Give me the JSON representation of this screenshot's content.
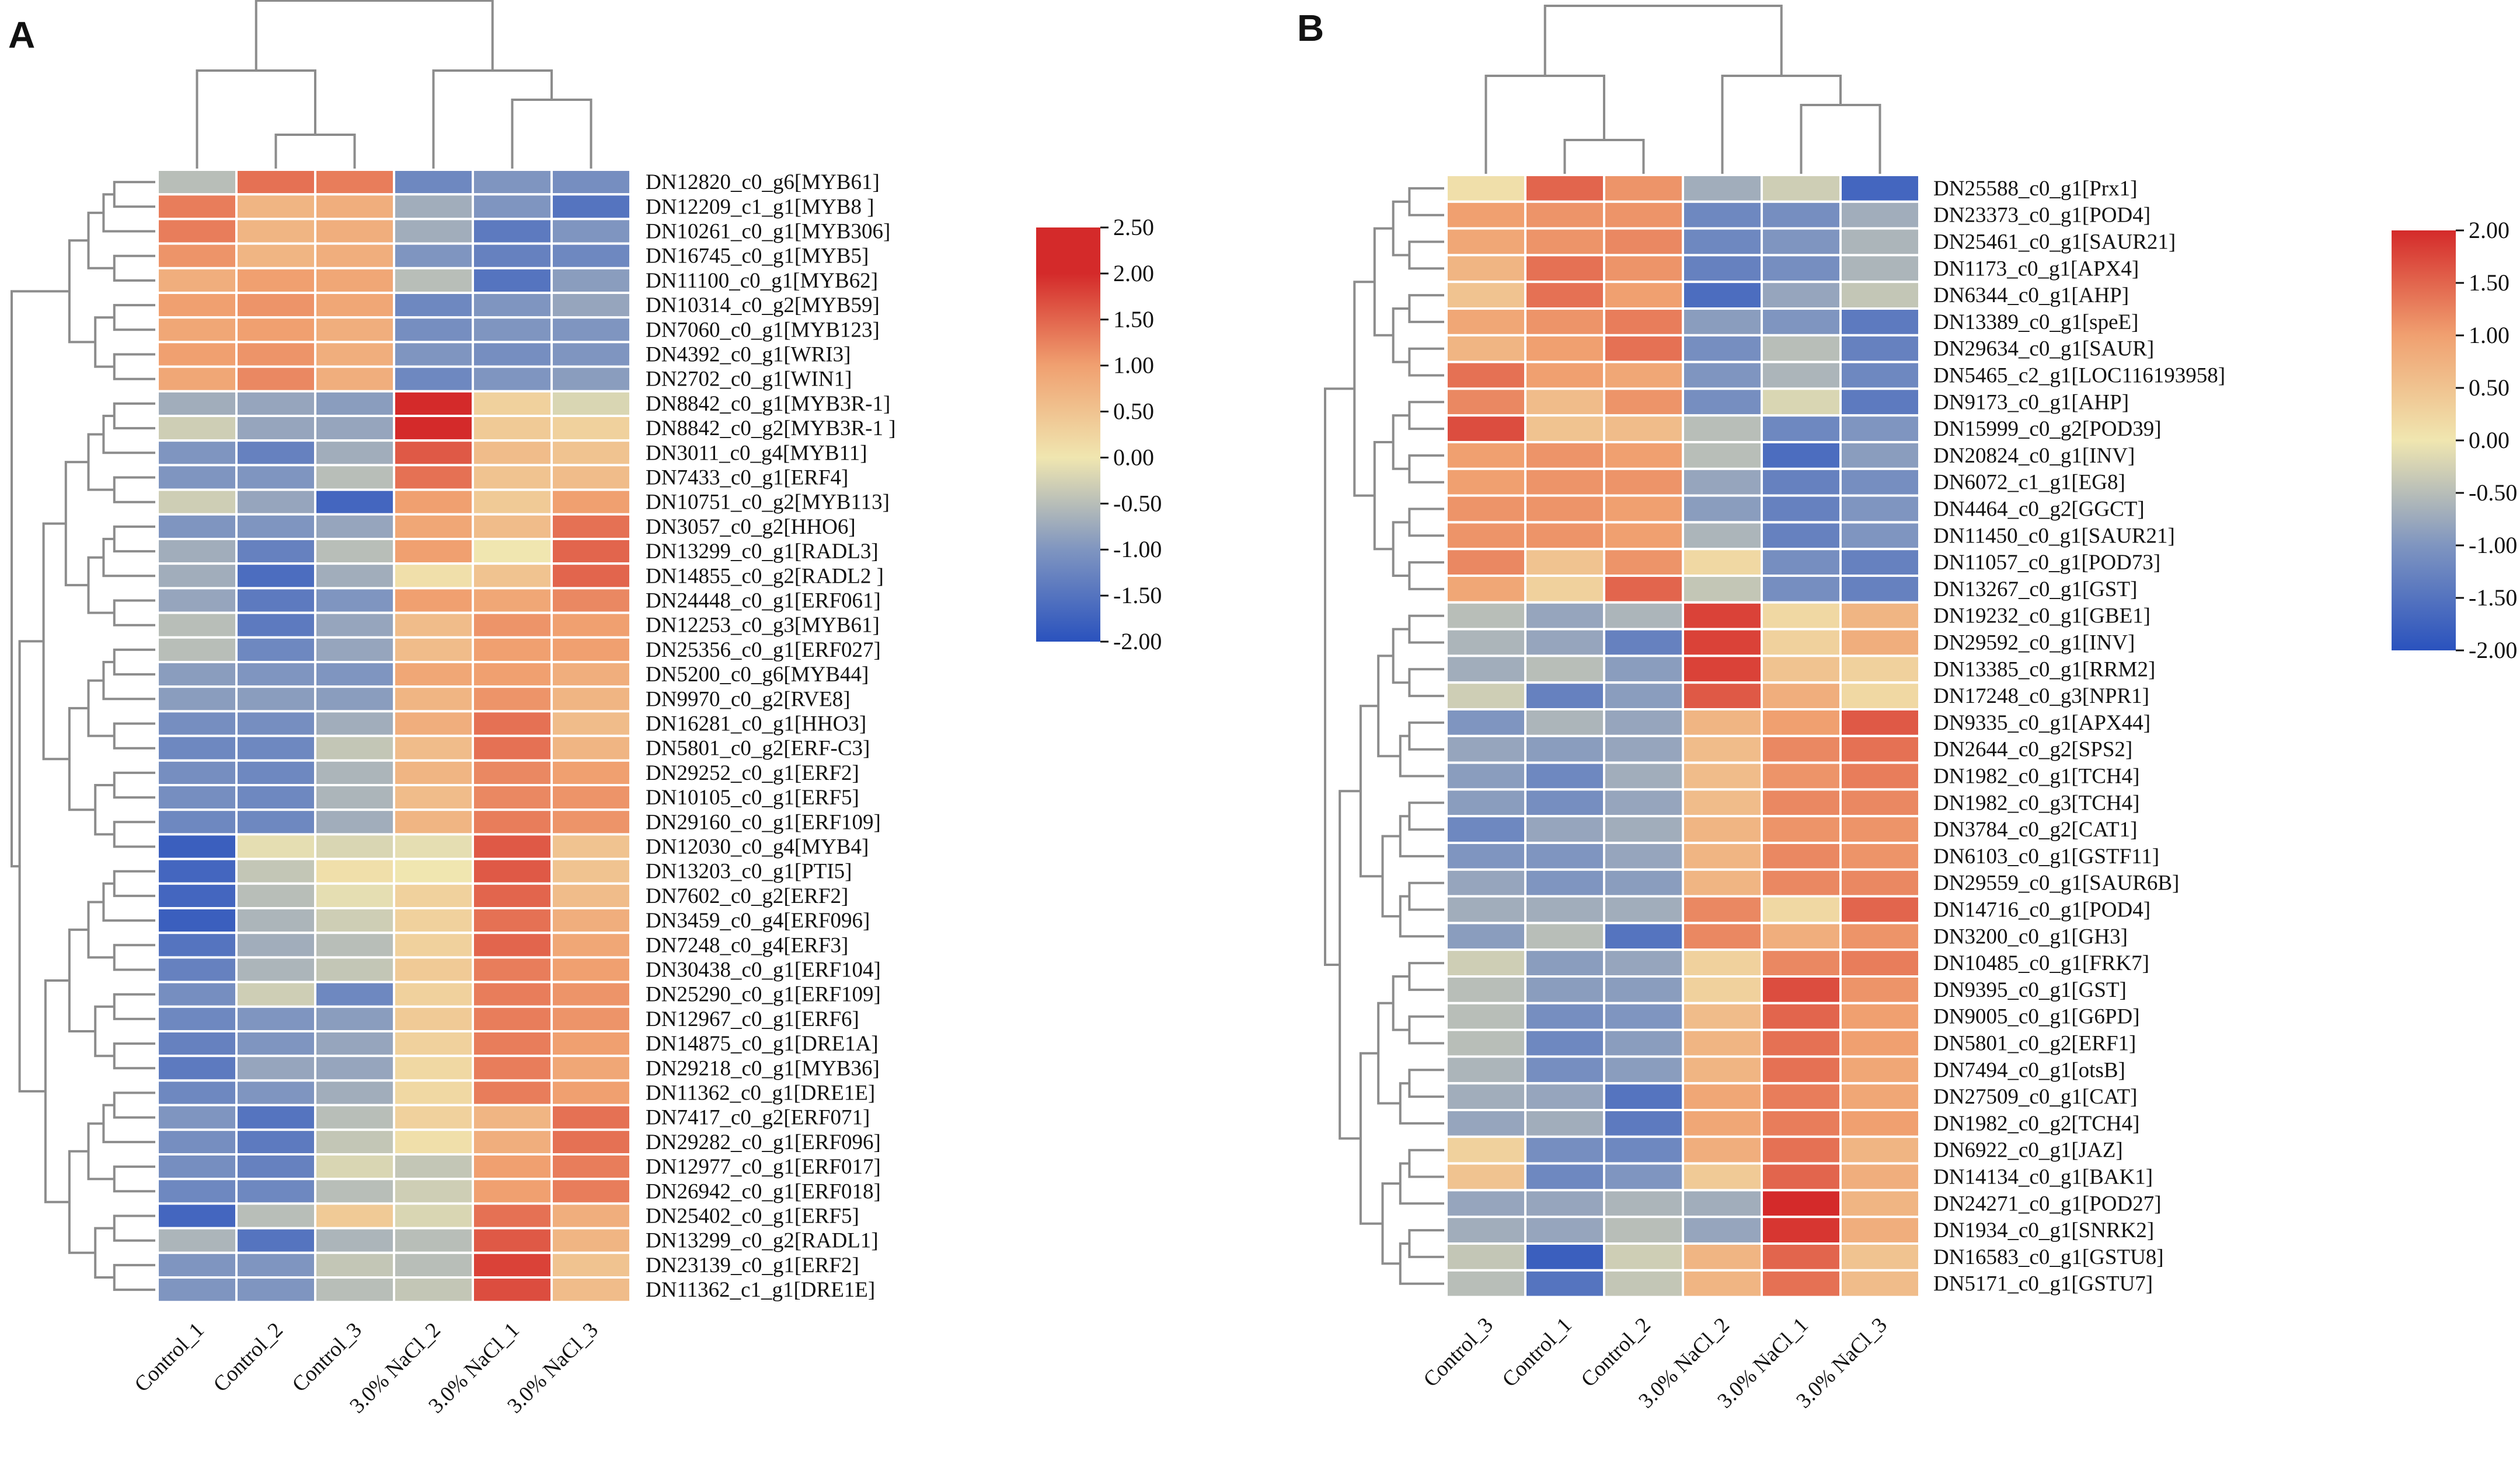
{
  "figure": {
    "colors": {
      "low": "#2a52be",
      "lowmid": "#7f95c0",
      "mid": "#f0e6b0",
      "highmid": "#f0a070",
      "high": "#d42a2a",
      "grid": "#ffffff",
      "dendrogram": "#8c8c8c",
      "text": "#111111"
    }
  },
  "chart_data": [
    {
      "type": "heatmap",
      "panel": "A",
      "columns": [
        "Control_1",
        "Control_2",
        "Control_3",
        "3.0% NaCl_2",
        "3.0% NaCl_1",
        "3.0% NaCl_3"
      ],
      "rows": [
        "DN12820_c0_g6[MYB61]",
        "DN12209_c1_g1[MYB8 ]",
        "DN10261_c0_g1[MYB306]",
        "DN16745_c0_g1[MYB5]",
        "DN11100_c0_g1[MYB62]",
        "DN10314_c0_g2[MYB59]",
        "DN7060_c0_g1[MYB123]",
        "DN4392_c0_g1[WRI3]",
        "DN2702_c0_g1[WIN1]",
        "DN8842_c0_g1[MYB3R-1]",
        "DN8842_c0_g2[MYB3R-1 ]",
        "DN3011_c0_g4[MYB11]",
        "DN7433_c0_g1[ERF4]",
        "DN10751_c0_g2[MYB113]",
        "DN3057_c0_g2[HHO6]",
        "DN13299_c0_g1[RADL3]",
        "DN14855_c0_g2[RADL2 ]",
        "DN24448_c0_g1[ERF061]",
        "DN12253_c0_g3[MYB61]",
        "DN25356_c0_g1[ERF027]",
        "DN5200_c0_g6[MYB44]",
        "DN9970_c0_g2[RVE8]",
        "DN16281_c0_g1[HHO3]",
        "DN5801_c0_g2[ERF-C3]",
        "DN29252_c0_g1[ERF2]",
        "DN10105_c0_g1[ERF5]",
        "DN29160_c0_g1[ERF109]",
        "DN12030_c0_g4[MYB4]",
        "DN13203_c0_g1[PTI5]",
        "DN7602_c0_g2[ERF2]",
        "DN3459_c0_g4[ERF096]",
        "DN7248_c0_g4[ERF3]",
        "DN30438_c0_g1[ERF104]",
        "DN25290_c0_g1[ERF109]",
        "DN12967_c0_g1[ERF6]",
        "DN14875_c0_g1[DRE1A]",
        "DN29218_c0_g1[MYB36]",
        "DN11362_c0_g1[DRE1E]",
        "DN7417_c0_g2[ERF071]",
        "DN29282_c0_g1[ERF096]",
        "DN12977_c0_g1[ERF017]",
        "DN26942_c0_g1[ERF018]",
        "DN25402_c0_g1[ERF5]",
        "DN13299_c0_g2[RADL1]",
        "DN23139_c0_g1[ERF2]",
        "DN11362_c1_g1[DRE1E]"
      ],
      "values": [
        [
          -0.5,
          1.4,
          1.3,
          -1.2,
          -1.0,
          -1.1
        ],
        [
          1.3,
          0.7,
          0.8,
          -0.7,
          -1.0,
          -1.5
        ],
        [
          1.3,
          0.7,
          0.8,
          -0.7,
          -1.4,
          -1.0
        ],
        [
          1.1,
          0.7,
          0.8,
          -1.0,
          -1.3,
          -1.2
        ],
        [
          0.8,
          1.0,
          0.9,
          -0.5,
          -1.5,
          -0.9
        ],
        [
          1.0,
          1.1,
          0.9,
          -1.2,
          -1.0,
          -0.8
        ],
        [
          0.9,
          1.0,
          0.8,
          -1.1,
          -1.0,
          -1.0
        ],
        [
          1.0,
          1.1,
          0.8,
          -1.0,
          -1.1,
          -1.0
        ],
        [
          0.9,
          1.2,
          0.8,
          -1.2,
          -1.0,
          -0.9
        ],
        [
          -0.7,
          -0.8,
          -0.9,
          2.0,
          0.3,
          -0.2
        ],
        [
          -0.3,
          -0.8,
          -0.8,
          2.0,
          0.4,
          0.3
        ],
        [
          -1.0,
          -1.3,
          -0.7,
          1.6,
          0.6,
          0.5
        ],
        [
          -1.0,
          -1.0,
          -0.5,
          1.4,
          0.5,
          0.6
        ],
        [
          -0.3,
          -0.8,
          -1.7,
          1.0,
          0.4,
          1.0
        ],
        [
          -1.0,
          -1.0,
          -0.8,
          0.9,
          0.6,
          1.4
        ],
        [
          -0.7,
          -1.3,
          -0.5,
          1.0,
          0.0,
          1.5
        ],
        [
          -0.7,
          -1.6,
          -0.7,
          0.1,
          0.5,
          1.5
        ],
        [
          -0.8,
          -1.4,
          -1.0,
          1.0,
          0.9,
          1.2
        ],
        [
          -0.5,
          -1.4,
          -0.8,
          0.6,
          1.1,
          1.0
        ],
        [
          -0.5,
          -1.2,
          -0.8,
          0.6,
          1.0,
          1.0
        ],
        [
          -0.9,
          -1.0,
          -1.0,
          0.9,
          1.0,
          0.8
        ],
        [
          -0.9,
          -0.9,
          -0.9,
          0.7,
          1.1,
          0.7
        ],
        [
          -1.1,
          -1.1,
          -0.7,
          0.8,
          1.4,
          0.6
        ],
        [
          -1.2,
          -1.2,
          -0.4,
          0.6,
          1.4,
          0.7
        ],
        [
          -1.1,
          -1.2,
          -0.6,
          0.7,
          1.2,
          1.0
        ],
        [
          -1.1,
          -1.2,
          -0.6,
          0.6,
          1.2,
          1.1
        ],
        [
          -1.2,
          -1.2,
          -0.7,
          0.7,
          1.3,
          1.1
        ],
        [
          -1.8,
          -0.1,
          -0.2,
          -0.1,
          1.6,
          0.5
        ],
        [
          -1.7,
          -0.4,
          0.1,
          0.0,
          1.6,
          0.5
        ],
        [
          -1.7,
          -0.5,
          -0.1,
          0.3,
          1.5,
          0.6
        ],
        [
          -1.8,
          -0.6,
          -0.3,
          0.3,
          1.4,
          0.8
        ],
        [
          -1.5,
          -0.7,
          -0.5,
          0.3,
          1.5,
          0.9
        ],
        [
          -1.3,
          -0.6,
          -0.4,
          0.4,
          1.3,
          1.0
        ],
        [
          -1.1,
          -0.3,
          -1.2,
          0.3,
          1.3,
          1.1
        ],
        [
          -1.2,
          -1.0,
          -0.9,
          0.4,
          1.3,
          1.1
        ],
        [
          -1.3,
          -1.0,
          -0.8,
          0.3,
          1.3,
          1.0
        ],
        [
          -1.4,
          -0.8,
          -0.8,
          0.2,
          1.3,
          0.9
        ],
        [
          -1.2,
          -1.0,
          -0.7,
          0.2,
          1.3,
          1.0
        ],
        [
          -1.0,
          -1.5,
          -0.5,
          0.3,
          0.7,
          1.4
        ],
        [
          -1.1,
          -1.4,
          -0.4,
          0.1,
          0.8,
          1.4
        ],
        [
          -1.1,
          -1.3,
          -0.2,
          -0.4,
          1.0,
          1.3
        ],
        [
          -1.2,
          -1.2,
          -0.5,
          -0.3,
          1.0,
          1.3
        ],
        [
          -1.7,
          -0.5,
          0.4,
          -0.2,
          1.4,
          0.8
        ],
        [
          -0.6,
          -1.5,
          -0.6,
          -0.5,
          1.6,
          0.7
        ],
        [
          -1.0,
          -1.0,
          -0.4,
          -0.5,
          1.8,
          0.5
        ],
        [
          -1.0,
          -1.0,
          -0.5,
          -0.4,
          1.7,
          0.6
        ]
      ],
      "colorbar": {
        "ticks": [
          "2.50",
          "2.00",
          "1.50",
          "1.00",
          "0.50",
          "0.00",
          "-0.50",
          "-1.00",
          "-1.50",
          "-2.00"
        ],
        "range": [
          -2.0,
          2.5
        ]
      }
    },
    {
      "type": "heatmap",
      "panel": "B",
      "columns": [
        "Control_3",
        "Control_1",
        "Control_2",
        "3.0% NaCl_2",
        "3.0% NaCl_1",
        "3.0% NaCl_3"
      ],
      "rows": [
        "DN25588_c0_g1[Prx1]",
        "DN23373_c0_g1[POD4]",
        "DN25461_c0_g1[SAUR21]",
        "DN1173_c0_g1[APX4]",
        "DN6344_c0_g1[AHP]",
        "DN13389_c0_g1[speE]",
        "DN29634_c0_g1[SAUR]",
        "DN5465_c2_g1[LOC116193958]",
        "DN9173_c0_g1[AHP]",
        "DN15999_c0_g2[POD39]",
        "DN20824_c0_g1[INV]",
        "DN6072_c1_g1[EG8]",
        "DN4464_c0_g2[GGCT]",
        "DN11450_c0_g1[SAUR21]",
        "DN11057_c0_g1[POD73]",
        "DN13267_c0_g1[GST]",
        "DN19232_c0_g1[GBE1]",
        "DN29592_c0_g1[INV]",
        "DN13385_c0_g1[RRM2]",
        "DN17248_c0_g3[NPR1]",
        "DN9335_c0_g1[APX44]",
        "DN2644_c0_g2[SPS2]",
        "DN1982_c0_g1[TCH4]",
        "DN1982_c0_g3[TCH4]",
        "DN3784_c0_g2[CAT1]",
        "DN6103_c0_g1[GSTF11]",
        "DN29559_c0_g1[SAUR6B]",
        "DN14716_c0_g1[POD4]",
        "DN3200_c0_g1[GH3]",
        "DN10485_c0_g1[FRK7]",
        "DN9395_c0_g1[GST]",
        "DN9005_c0_g1[G6PD]",
        "DN5801_c0_g2[ERF1]",
        "DN7494_c0_g1[otsB]",
        "DN27509_c0_g1[CAT]",
        "DN1982_c0_g2[TCH4]",
        "DN6922_c0_g1[JAZ]",
        "DN14134_c0_g1[BAK1]",
        "DN24271_c0_g1[POD27]",
        "DN1934_c0_g1[SNRK2]",
        "DN16583_c0_g1[GSTU8]",
        "DN5171_c0_g1[GSTU7]"
      ],
      "values": [
        [
          0.1,
          1.5,
          1.1,
          -0.7,
          -0.3,
          -1.7
        ],
        [
          1.0,
          1.1,
          1.1,
          -1.2,
          -1.1,
          -0.7
        ],
        [
          0.9,
          1.1,
          1.2,
          -1.2,
          -1.0,
          -0.6
        ],
        [
          0.7,
          1.4,
          1.1,
          -1.3,
          -1.1,
          -0.6
        ],
        [
          0.5,
          1.4,
          1.0,
          -1.6,
          -0.8,
          -0.4
        ],
        [
          0.9,
          1.1,
          1.3,
          -0.9,
          -1.0,
          -1.4
        ],
        [
          0.7,
          1.0,
          1.4,
          -1.1,
          -0.5,
          -1.3
        ],
        [
          1.4,
          1.0,
          0.9,
          -1.0,
          -0.6,
          -1.2
        ],
        [
          1.2,
          0.6,
          1.1,
          -1.1,
          -0.2,
          -1.4
        ],
        [
          1.7,
          0.5,
          0.6,
          -0.5,
          -1.2,
          -1.0
        ],
        [
          1.0,
          1.1,
          1.0,
          -0.5,
          -1.6,
          -0.9
        ],
        [
          1.0,
          1.1,
          1.1,
          -0.8,
          -1.3,
          -1.1
        ],
        [
          1.1,
          1.1,
          1.0,
          -0.9,
          -1.3,
          -1.0
        ],
        [
          1.1,
          1.1,
          1.0,
          -0.6,
          -1.3,
          -1.0
        ],
        [
          1.2,
          0.5,
          1.1,
          0.2,
          -1.1,
          -1.3
        ],
        [
          0.9,
          0.3,
          1.5,
          -0.4,
          -1.1,
          -1.3
        ],
        [
          -0.5,
          -0.8,
          -0.6,
          1.8,
          0.2,
          0.7
        ],
        [
          -0.6,
          -0.8,
          -1.3,
          1.8,
          0.3,
          0.8
        ],
        [
          -0.7,
          -0.5,
          -0.9,
          1.8,
          0.5,
          0.3
        ],
        [
          -0.3,
          -1.3,
          -0.9,
          1.6,
          0.8,
          0.2
        ],
        [
          -1.0,
          -0.6,
          -0.8,
          0.7,
          1.0,
          1.6
        ],
        [
          -0.8,
          -0.9,
          -0.8,
          0.6,
          1.2,
          1.4
        ],
        [
          -0.9,
          -1.2,
          -0.7,
          0.6,
          1.1,
          1.3
        ],
        [
          -0.9,
          -1.1,
          -0.8,
          0.6,
          1.2,
          1.2
        ],
        [
          -1.2,
          -0.8,
          -0.7,
          0.7,
          1.1,
          1.1
        ],
        [
          -1.0,
          -1.0,
          -0.8,
          0.7,
          1.2,
          1.1
        ],
        [
          -0.8,
          -1.0,
          -0.9,
          0.7,
          1.2,
          1.2
        ],
        [
          -0.7,
          -0.7,
          -0.7,
          1.2,
          0.2,
          1.5
        ],
        [
          -0.9,
          -0.5,
          -1.5,
          1.2,
          0.8,
          1.1
        ],
        [
          -0.3,
          -0.9,
          -0.8,
          0.3,
          1.2,
          1.3
        ],
        [
          -0.5,
          -0.9,
          -0.9,
          0.3,
          1.7,
          1.1
        ],
        [
          -0.5,
          -1.1,
          -1.0,
          0.6,
          1.5,
          1.0
        ],
        [
          -0.5,
          -1.2,
          -0.9,
          0.7,
          1.4,
          1.0
        ],
        [
          -0.6,
          -1.1,
          -0.9,
          0.7,
          1.4,
          0.9
        ],
        [
          -0.7,
          -0.8,
          -1.5,
          0.9,
          1.3,
          0.9
        ],
        [
          -0.8,
          -0.7,
          -1.4,
          0.9,
          1.3,
          1.0
        ],
        [
          0.3,
          -1.1,
          -1.2,
          0.8,
          1.4,
          0.7
        ],
        [
          0.5,
          -1.2,
          -1.0,
          0.4,
          1.5,
          0.8
        ],
        [
          -0.8,
          -0.8,
          -0.6,
          -0.7,
          2.0,
          0.7
        ],
        [
          -0.7,
          -0.8,
          -0.5,
          -0.8,
          1.9,
          0.8
        ],
        [
          -0.4,
          -1.8,
          -0.3,
          0.7,
          1.5,
          0.5
        ],
        [
          -0.5,
          -1.5,
          -0.4,
          0.7,
          1.4,
          0.6
        ]
      ],
      "colorbar": {
        "ticks": [
          "2.00",
          "1.50",
          "1.00",
          "0.50",
          "0.00",
          "-0.50",
          "-1.00",
          "-1.50",
          "-2.00"
        ],
        "range": [
          -2.0,
          2.0
        ]
      }
    }
  ]
}
